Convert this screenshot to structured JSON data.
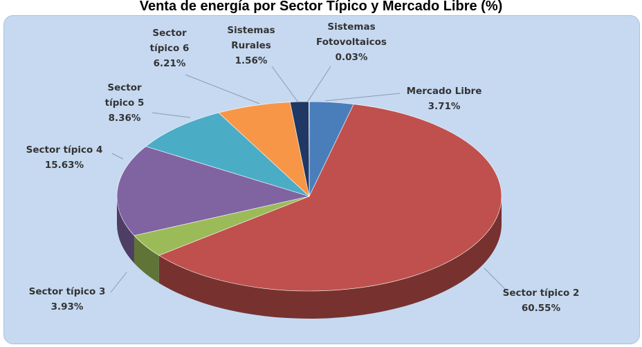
{
  "chart_data": {
    "type": "pie",
    "title": "Venta de energía por Sector Típico y Mercado Libre (%)",
    "categories": [
      "Mercado Libre",
      "Sector típico 2",
      "Sector típico 3",
      "Sector típico 4",
      "Sector típico 5",
      "Sector típico 6",
      "Sistemas Rurales",
      "Sistemas Fotovoltaicos"
    ],
    "values": [
      3.71,
      60.55,
      3.93,
      15.63,
      8.36,
      6.21,
      1.56,
      0.03
    ],
    "value_labels": [
      "3.71%",
      "60.55%",
      "3.93%",
      "15.63%",
      "8.36%",
      "6.21%",
      "1.56%",
      "0.03%"
    ],
    "colors": [
      "#4a7ebb",
      "#c0504d",
      "#9bbb59",
      "#8064a2",
      "#4bacc6",
      "#f79646",
      "#1f3864",
      "#2c4d75"
    ]
  }
}
